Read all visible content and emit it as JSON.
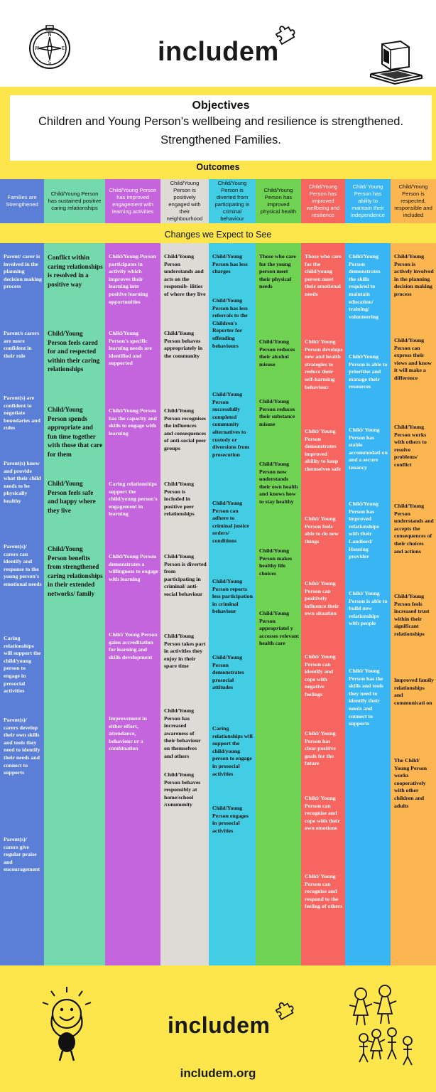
{
  "header": {
    "logo_text": "includem",
    "compass_letters": {
      "n": "N",
      "s": "S",
      "e": "E",
      "w": "W"
    }
  },
  "objectives": {
    "title": "Objectives",
    "lines": [
      "Children and Young Person's wellbeing and resilience is strengthened.",
      "Strengthened Families."
    ]
  },
  "outcomes_title": "Outcomes",
  "changes_title": "Changes we Expect to See",
  "outcomes": [
    {
      "label": "Families are Strengthened",
      "bg": "#5b7fd6",
      "color": "#ffffff"
    },
    {
      "label": "Child/Young Person has sustained positive caring relationships",
      "bg": "#74d9ad",
      "color": "#111111"
    },
    {
      "label": "Child/Young Person has improved engagement with learning activities",
      "bg": "#c465de",
      "color": "#ffffff"
    },
    {
      "label": "Child/Young Person is positively engaged with their neighbourhood",
      "bg": "#dedbd6",
      "color": "#111111"
    },
    {
      "label": "Child/Young Person is diverted from participating in criminal behaviour",
      "bg": "#42cde4",
      "color": "#111111"
    },
    {
      "label": "Child/Young Person has improved physical health",
      "bg": "#6fd253",
      "color": "#111111"
    },
    {
      "label": "Child/Young Person has improved wellbeing and resilience",
      "bg": "#f76560",
      "color": "#ffffff"
    },
    {
      "label": "Child/ Young Person has ability to maintain their independence",
      "bg": "#39b5f3",
      "color": "#ffffff"
    },
    {
      "label": "Child/Young Person is respected, responsible and included",
      "bg": "#fbb652",
      "color": "#111111"
    }
  ],
  "columns": [
    {
      "name": "families",
      "bg": "#5b7fd6",
      "color": "#ffffff",
      "items": [
        "Parent/ carer is involved in the planning decision making process",
        "Parent/s carers are more confident in their role",
        "Parent(s) are confident to negotiate boundaries and rules",
        "Parent(s) know and provide what their child needs to be physically healthy",
        "Parent(s)/ carers can identify and response to the young person's emotional needs",
        "Caring relationships will support the child/young person to engage in prosocial activities",
        "Parent(s)/ carers develop their own skills and tools they need to identify their needs and connect to supports",
        "Parent(s)/ carers give regular praise and encouragement"
      ]
    },
    {
      "name": "relationships",
      "bg": "#74d9ad",
      "color": "#111111",
      "items": [
        "Conflict within caring relationships is resolved in a positive way",
        "Child/Young Person feels cared for and respected within their caring relationships",
        "Child/Young Person spends appropriate and fun time together with those that care for them",
        "Child/Young Person feels safe and happy where they live",
        "Child/Young Person benefits from strengthened caring relationships in their extended networks/ family"
      ]
    },
    {
      "name": "learning",
      "bg": "#c465de",
      "color": "#ffffff",
      "items": [
        "Child/Young Person participates in activity which improves their learning into positive learning opportunities",
        "Child/Young Person's specific learning needs are identified and supported",
        "Child/Young Person has the capacity and skills to engage with learning",
        "Caring relationships support the child/young person's engagement in learning",
        "Child/Young Person demonstrates a willingness to engage with learning",
        "Child/ Young Person gains accreditation for learning and skills development",
        "Improvement in either effort, attendance, behaviour or a combination"
      ]
    },
    {
      "name": "neighbourhood",
      "bg": "#dedbd6",
      "color": "#111111",
      "items": [
        "Child/Young Person understands and acts on the responsib- ilities of where they live",
        "Child/Young Person behaves appropriately in the community",
        "Child/Young Person recognises the influences and consequences of anti-social peer groups",
        "Child/Young Person is included in positive peer relationships",
        "Child/Young Person is diverted from participating in criminal/ anti-social behaviour",
        "Child/Young Person takes part in activities they enjoy in their spare time",
        "Child/Young Person has increased awareness of their behaviour on themselves and others",
        "Child/Young Person behaves responsibly at home/school /community"
      ]
    },
    {
      "name": "criminal",
      "bg": "#42cde4",
      "color": "#111111",
      "items": [
        "Child/Young Person has less charges",
        "Child/Young Person has less referrals to the Children's Reporter for offending behaviours",
        "Child/Young Person successfully completed community alternatives to custody or diversions from prosecution",
        "Child/Young Person can adhere to criminal justice orders/ conditions",
        "Child/Young Person reports less participation in criminal behaviour",
        "Child/Young Person demonstrates prosocial attitudes",
        "Caring relationships will support the child/young person to engage in prosocial activities",
        "Child/Young Person engages in prosocial activities"
      ]
    },
    {
      "name": "physical",
      "bg": "#6fd253",
      "color": "#111111",
      "items": [
        "Those who care for the young person meet their physical needs",
        "Child/Young Person reduces their alcohol misuse",
        "Child/Young Person reduces their substance misuse",
        "Child/Young Person now understands their own health and knows how to stay healthy",
        "Child/Young Person makes healthy life choices",
        "Child/Young Person appropriatel y accesses relevant health care"
      ]
    },
    {
      "name": "wellbeing",
      "bg": "#f76560",
      "color": "#ffffff",
      "items": [
        "Those who care for the child/young person meet their emotional needs",
        "Child/ Young Person develops new and health strategies to reduce their self-harming behaviour",
        "Child/ Young Person demonstrates improved ability to keep themselves safe",
        "Child/ Young Person feels able to do new things",
        "Child/ Young Person can positively influence their own situation",
        "Child/ Young Person can identify and cope with negative feelings",
        "Child/ Young Person has clear positive goals for the future",
        "Child/ Young Person can recognise and cope with their own emotions",
        "Child/ Young Person can recognise and respond to the feeling of others"
      ]
    },
    {
      "name": "independence",
      "bg": "#39b5f3",
      "color": "#ffffff",
      "items": [
        "Child/Young Person demonstrates the skills required to maintain education/ training/ volunteering",
        "Child/Young Person is able to prioritise and manage their resources",
        "Child/ Young Person has stable accommodati on and a secure tenancy",
        "Child/Young Person has improved relationships with their Landlord/ Housing provider",
        "Child/ Young Person is able to build new relationships with people",
        "Child/ Young Person has the skills and tools they need to identify their needs and connect to supports"
      ]
    },
    {
      "name": "respected",
      "bg": "#fbb652",
      "color": "#111111",
      "items": [
        "Child/Young Person is actively involved in the planning decision making process",
        "Child/Young Person can express their views and know it will make a difference",
        "Child/Young Person works with others to resolve problems/ conflict",
        "Child/Young Person understands and accepts the consequences of their choices and actions",
        "Child/Young Person feels increased trust within their significant relationships",
        "Improved family relationships and communicati on",
        "The Child/ Young Person works cooperatively with other children and adults"
      ]
    }
  ],
  "footer": {
    "logo_text": "includem",
    "url": "includem.org"
  }
}
